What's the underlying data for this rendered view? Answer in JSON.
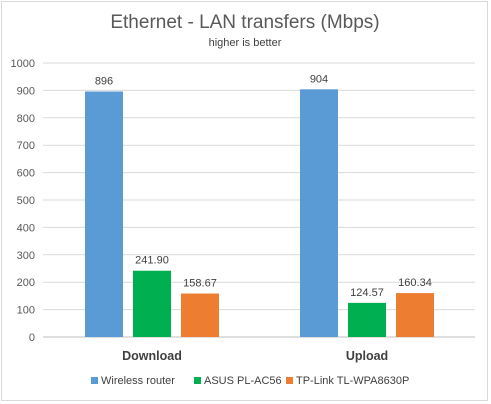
{
  "chart_data": {
    "type": "bar",
    "title": "Ethernet - LAN transfers (Mbps)",
    "subtitle": "higher is better",
    "categories": [
      "Download",
      "Upload"
    ],
    "series": [
      {
        "name": "Wireless router",
        "values": [
          896,
          904
        ],
        "labels": [
          "896",
          "904"
        ],
        "color": "#5b9bd5"
      },
      {
        "name": "ASUS PL-AC56",
        "values": [
          241.9,
          124.57
        ],
        "labels": [
          "241.90",
          "124.57"
        ],
        "color": "#00b050"
      },
      {
        "name": "TP-Link TL-WPA8630P",
        "values": [
          158.67,
          160.34
        ],
        "labels": [
          "158.67",
          "160.34"
        ],
        "color": "#ed7d31"
      }
    ],
    "ylim": [
      0,
      1000
    ],
    "yticks": [
      "0",
      "100",
      "200",
      "300",
      "400",
      "500",
      "600",
      "700",
      "800",
      "900",
      "1000"
    ],
    "grid": true,
    "legend": "bottom"
  }
}
